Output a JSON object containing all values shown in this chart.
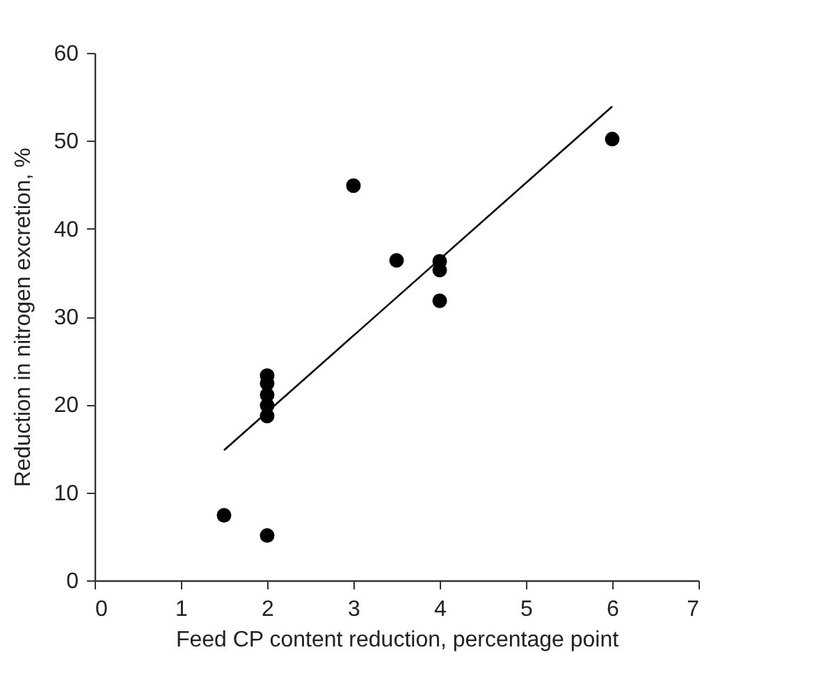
{
  "chart_data": {
    "type": "scatter",
    "xlabel": "Feed CP content reduction, percentage point",
    "ylabel": "Reduction in nitrogen excretion, %",
    "xlim": [
      0,
      7
    ],
    "xticks": [
      0,
      1,
      2,
      3,
      4,
      5,
      6,
      7
    ],
    "ylim": [
      0,
      60
    ],
    "yticks": [
      0,
      10,
      20,
      30,
      40,
      50,
      60
    ],
    "grid": false,
    "series": [
      {
        "color": "#000000",
        "marker": "circle",
        "x": [
          1.5,
          2,
          2,
          2,
          2,
          2,
          2,
          3,
          3.5,
          4,
          4,
          4,
          6
        ],
        "values": [
          7.4,
          5.1,
          23.3,
          22.4,
          21.1,
          19.9,
          18.7,
          44.9,
          36.4,
          36.3,
          35.3,
          31.8,
          50.2
        ]
      },
      {
        "type": "line",
        "color": "#000000",
        "marker": "none",
        "line_style": "solid",
        "x": [
          1.5,
          6
        ],
        "values": [
          14.8,
          53.9
        ]
      }
    ]
  }
}
